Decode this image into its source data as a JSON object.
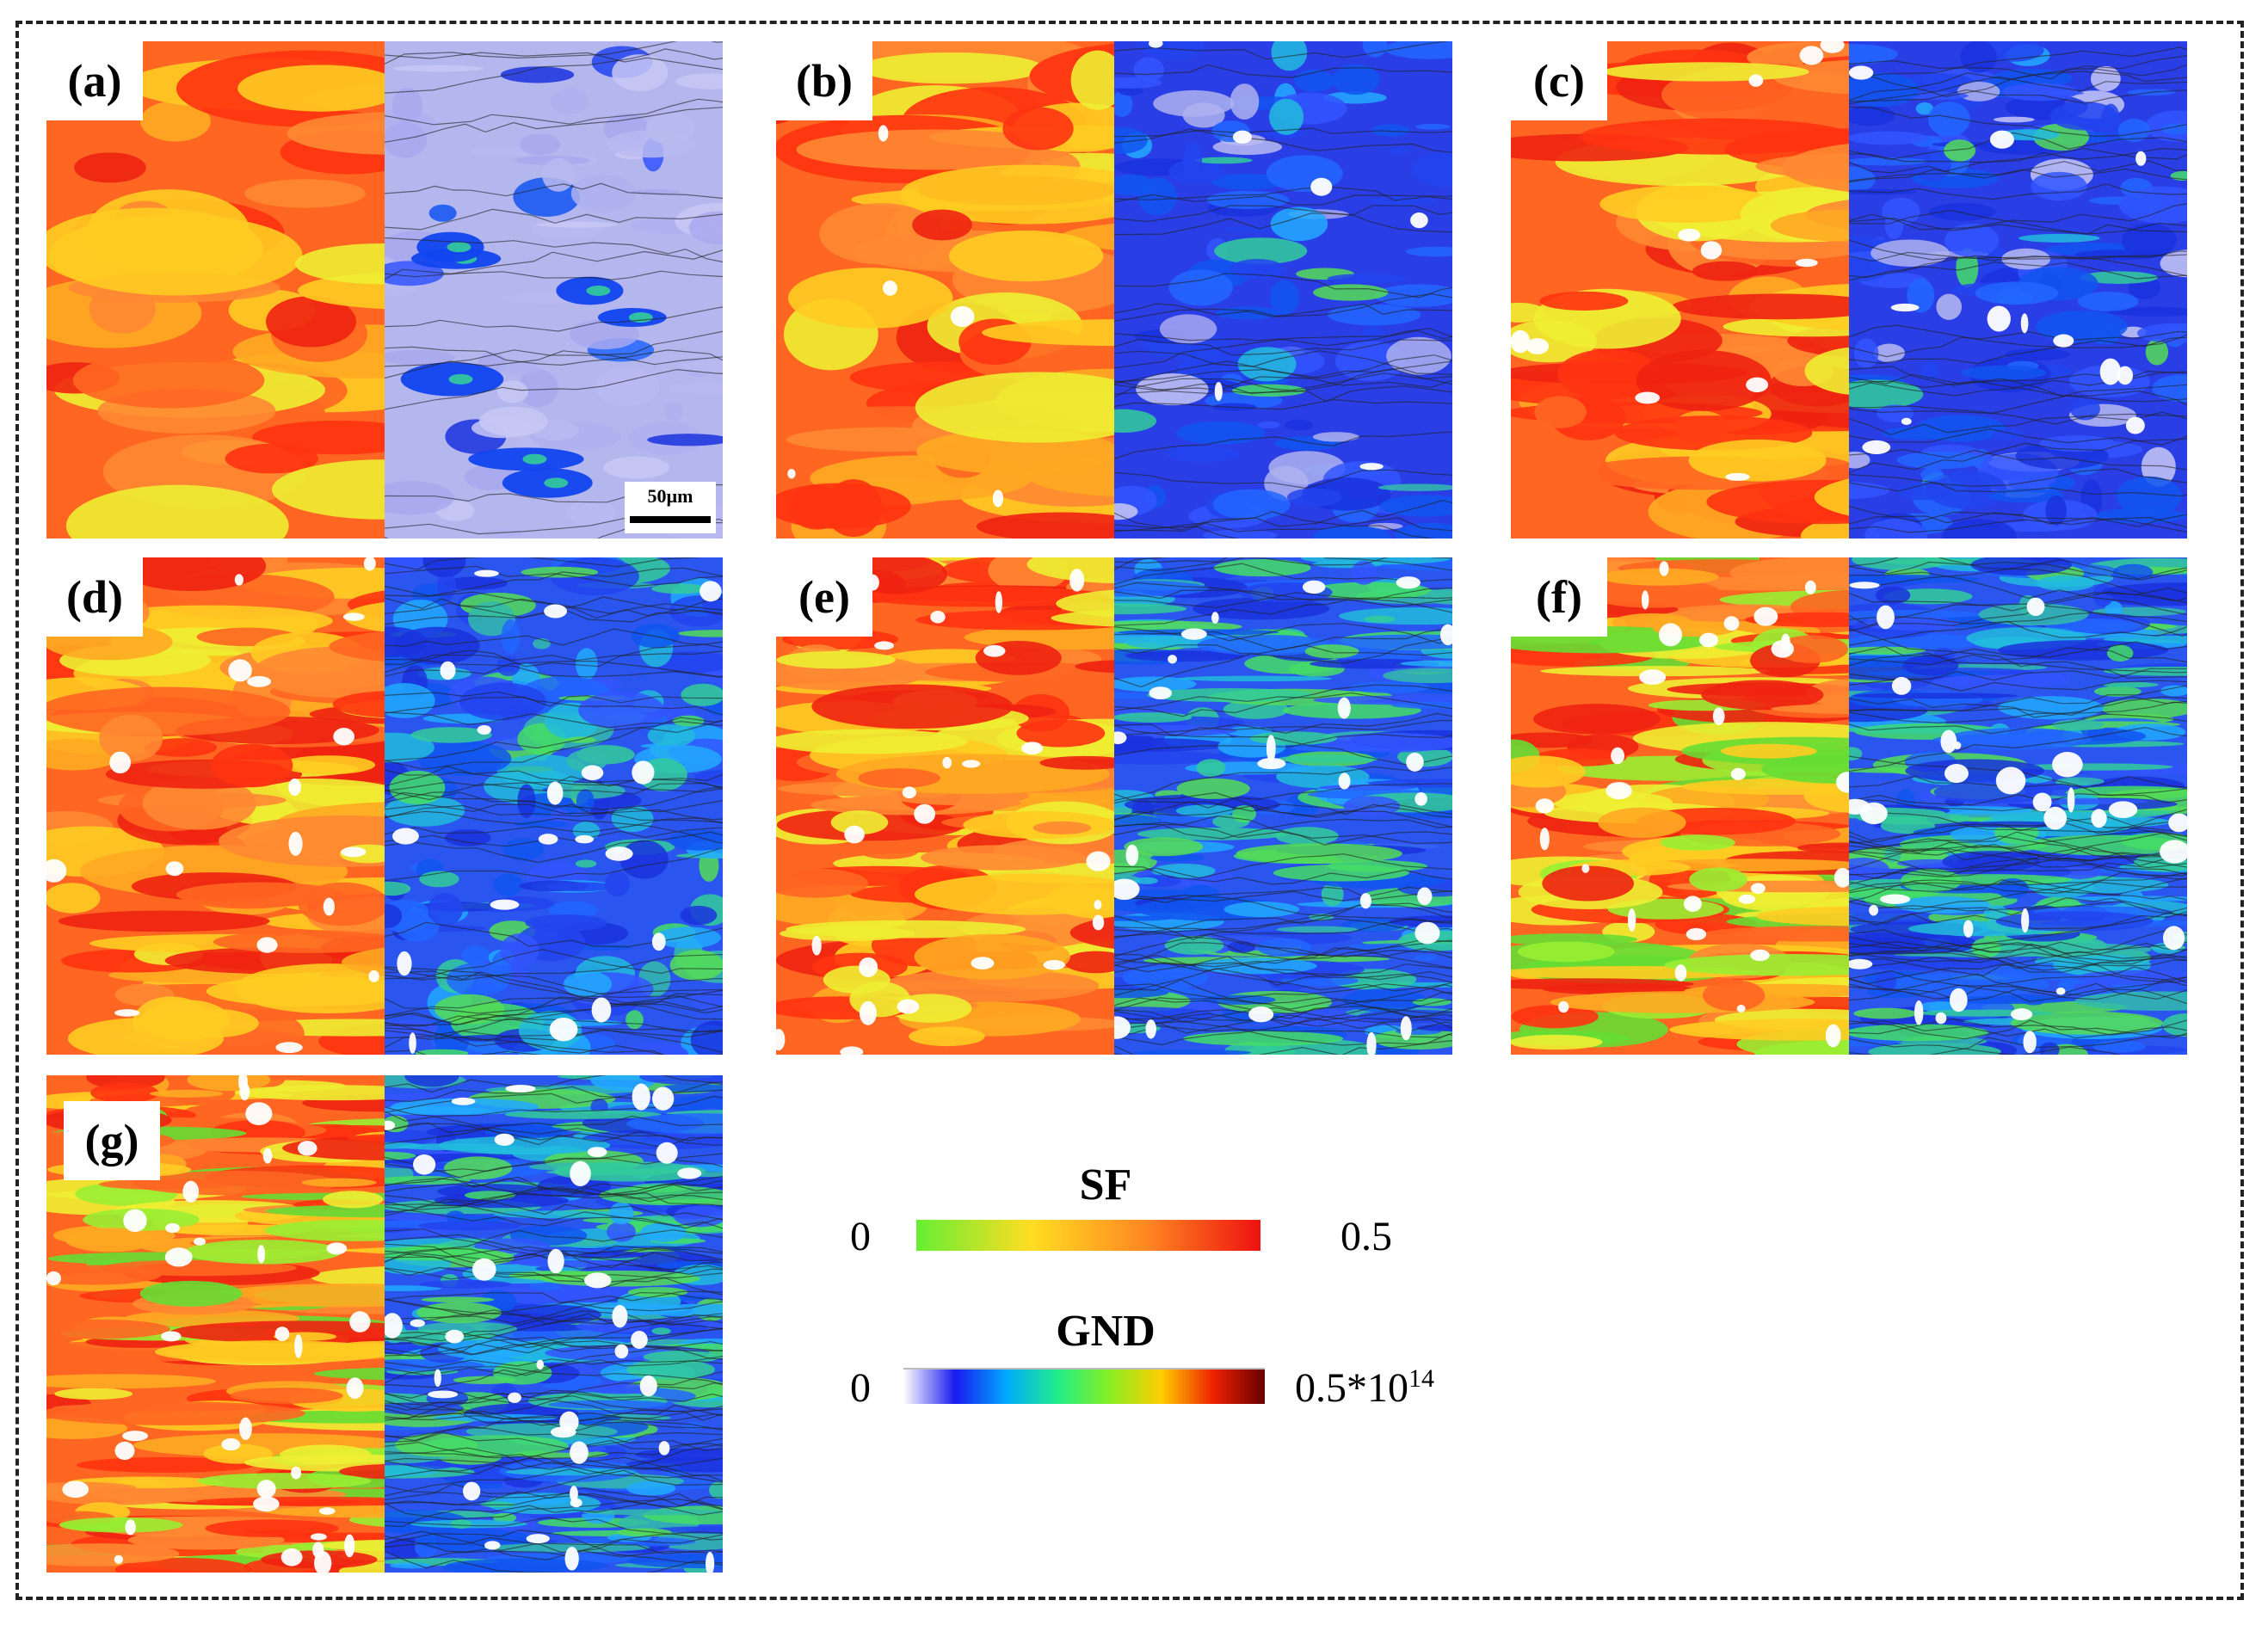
{
  "panels": [
    {
      "id": "a",
      "label": "(a)"
    },
    {
      "id": "b",
      "label": "(b)"
    },
    {
      "id": "c",
      "label": "(c)"
    },
    {
      "id": "d",
      "label": "(d)"
    },
    {
      "id": "e",
      "label": "(e)"
    },
    {
      "id": "f",
      "label": "(f)"
    },
    {
      "id": "g",
      "label": "(g)"
    }
  ],
  "scale_bar": {
    "label": "50µm"
  },
  "legend": {
    "sf": {
      "title": "SF",
      "min": "0",
      "max": "0.5",
      "colors": [
        "#66ee33",
        "#ffdd22",
        "#ff8822",
        "#ee1111"
      ]
    },
    "gnd": {
      "title": "GND",
      "min": "0",
      "max_base": "0.5*10",
      "max_exp": "14",
      "colors": [
        "#ffffff",
        "#1a1aee",
        "#00aaff",
        "#22ee88",
        "#88ee22",
        "#ffcc00",
        "#ee2200",
        "#660000"
      ]
    }
  }
}
